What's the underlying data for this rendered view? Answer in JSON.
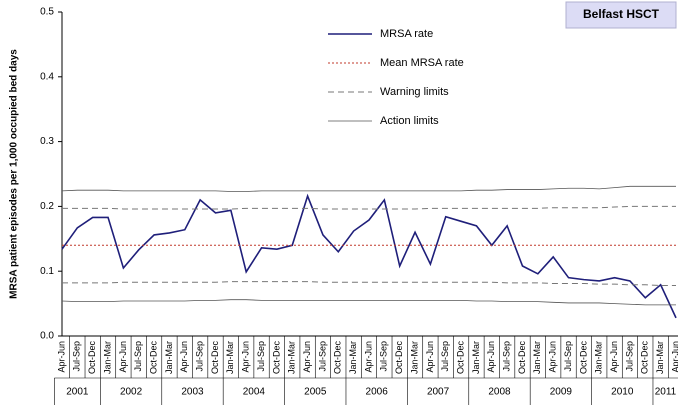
{
  "chart_data": {
    "type": "line",
    "badge": "Belfast HSCT",
    "y_label": "MRSA patient episodes per 1,000 occupied bed days",
    "categories": [
      "Apr-Jun",
      "Jul-Sep",
      "Oct-Dec",
      "Jan-Mar",
      "Apr-Jun",
      "Jul-Sep",
      "Oct-Dec",
      "Jan-Mar",
      "Apr-Jun",
      "Jul-Sep",
      "Oct-Dec",
      "Jan-Mar",
      "Apr-Jun",
      "Jul-Sep",
      "Oct-Dec",
      "Jan-Mar",
      "Apr-Jun",
      "Jul-Sep",
      "Oct-Dec",
      "Jan-Mar",
      "Apr-Jun",
      "Jul-Sep",
      "Oct-Dec",
      "Jan-Mar",
      "Apr-Jun",
      "Jul-Sep",
      "Oct-Dec",
      "Jan-Mar",
      "Apr-Jun",
      "Jul-Sep",
      "Oct-Dec",
      "Jan-Mar",
      "Apr-Jun",
      "Jul-Sep",
      "Oct-Dec",
      "Jan-Mar",
      "Apr-Jun",
      "Jul-Sep",
      "Oct-Dec",
      "Jan-Mar",
      "Apr-Jun"
    ],
    "years": [
      "2001",
      "2002",
      "2003",
      "2004",
      "2005",
      "2006",
      "2007",
      "2008",
      "2009",
      "2010",
      "2011"
    ],
    "series": [
      {
        "name": "MRSA rate",
        "color": "#1f1f7a",
        "style": "solid",
        "values": [
          0.134,
          0.167,
          0.183,
          0.183,
          0.105,
          0.133,
          0.156,
          0.159,
          0.164,
          0.21,
          0.19,
          0.194,
          0.099,
          0.136,
          0.134,
          0.14,
          0.216,
          0.156,
          0.13,
          0.162,
          0.179,
          0.21,
          0.108,
          0.16,
          0.111,
          0.184,
          0.177,
          0.17,
          0.14,
          0.17,
          0.108,
          0.096,
          0.122,
          0.09,
          0.087,
          0.085,
          0.09,
          0.085,
          0.059,
          0.079,
          0.028
        ]
      },
      {
        "name": "Mean MRSA rate",
        "color": "#c0392b",
        "style": "dotted",
        "values": [
          0.14,
          0.14,
          0.14,
          0.14,
          0.14,
          0.14,
          0.14,
          0.14,
          0.14,
          0.14,
          0.14,
          0.14,
          0.14,
          0.14,
          0.14,
          0.14,
          0.14,
          0.14,
          0.14,
          0.14,
          0.14,
          0.14,
          0.14,
          0.14,
          0.14,
          0.14,
          0.14,
          0.14,
          0.14,
          0.14,
          0.14,
          0.14,
          0.14,
          0.14,
          0.14,
          0.14,
          0.14,
          0.14,
          0.14,
          0.14,
          0.14
        ]
      },
      {
        "name": "Warning limits",
        "color": "#777777",
        "style": "dashed",
        "values": [
          0.197,
          0.197,
          0.197,
          0.197,
          0.196,
          0.196,
          0.196,
          0.196,
          0.196,
          0.196,
          0.196,
          0.196,
          0.197,
          0.197,
          0.197,
          0.197,
          0.197,
          0.196,
          0.196,
          0.196,
          0.196,
          0.196,
          0.196,
          0.196,
          0.197,
          0.197,
          0.197,
          0.197,
          0.197,
          0.197,
          0.197,
          0.197,
          0.198,
          0.198,
          0.198,
          0.198,
          0.199,
          0.2,
          0.2,
          0.2,
          0.2
        ],
        "lower": [
          0.082,
          0.082,
          0.082,
          0.082,
          0.083,
          0.083,
          0.083,
          0.083,
          0.083,
          0.083,
          0.083,
          0.084,
          0.084,
          0.084,
          0.084,
          0.084,
          0.084,
          0.083,
          0.083,
          0.083,
          0.083,
          0.083,
          0.083,
          0.083,
          0.083,
          0.083,
          0.083,
          0.083,
          0.083,
          0.082,
          0.082,
          0.082,
          0.081,
          0.081,
          0.081,
          0.08,
          0.08,
          0.079,
          0.079,
          0.078,
          0.078
        ]
      },
      {
        "name": "Action limits",
        "color": "#555555",
        "style": "solid-thin",
        "values": [
          0.224,
          0.225,
          0.225,
          0.225,
          0.224,
          0.224,
          0.224,
          0.224,
          0.224,
          0.224,
          0.224,
          0.223,
          0.223,
          0.224,
          0.224,
          0.224,
          0.224,
          0.224,
          0.224,
          0.224,
          0.224,
          0.224,
          0.224,
          0.224,
          0.224,
          0.224,
          0.224,
          0.225,
          0.225,
          0.226,
          0.226,
          0.226,
          0.227,
          0.228,
          0.228,
          0.227,
          0.229,
          0.231,
          0.231,
          0.231,
          0.231
        ],
        "lower": [
          0.054,
          0.053,
          0.053,
          0.053,
          0.054,
          0.054,
          0.054,
          0.054,
          0.054,
          0.055,
          0.055,
          0.056,
          0.056,
          0.055,
          0.055,
          0.055,
          0.055,
          0.055,
          0.055,
          0.055,
          0.055,
          0.055,
          0.055,
          0.055,
          0.055,
          0.055,
          0.055,
          0.054,
          0.054,
          0.053,
          0.053,
          0.053,
          0.052,
          0.051,
          0.051,
          0.051,
          0.05,
          0.049,
          0.048,
          0.048,
          0.048
        ]
      }
    ],
    "ylim": [
      0,
      0.5
    ],
    "yticks": [
      {
        "value": 0,
        "label": "0.0"
      },
      0.1,
      0.2,
      0.3,
      0.4,
      0.5
    ]
  }
}
